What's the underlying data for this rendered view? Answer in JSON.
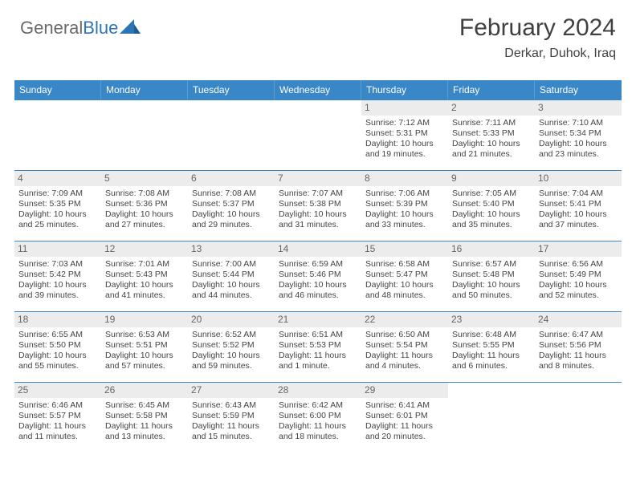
{
  "brand": {
    "part1": "General",
    "part2": "Blue"
  },
  "header": {
    "title": "February 2024",
    "location": "Derkar, Duhok, Iraq"
  },
  "colors": {
    "headerBar": "#3a87c8",
    "headerText": "#ffffff",
    "dayNumBg": "#ececec",
    "border": "#3a87c8",
    "logoGray": "#6a6a6a",
    "logoBlue": "#2e75b6"
  },
  "dayNames": [
    "Sunday",
    "Monday",
    "Tuesday",
    "Wednesday",
    "Thursday",
    "Friday",
    "Saturday"
  ],
  "layout": {
    "columns": 7,
    "rows": 5,
    "leadingBlanks": 4
  },
  "labels": {
    "sunrise": "Sunrise:",
    "sunset": "Sunset:",
    "daylight": "Daylight:"
  },
  "days": [
    {
      "n": 1,
      "sr": "7:12 AM",
      "ss": "5:31 PM",
      "dl": "10 hours and 19 minutes."
    },
    {
      "n": 2,
      "sr": "7:11 AM",
      "ss": "5:33 PM",
      "dl": "10 hours and 21 minutes."
    },
    {
      "n": 3,
      "sr": "7:10 AM",
      "ss": "5:34 PM",
      "dl": "10 hours and 23 minutes."
    },
    {
      "n": 4,
      "sr": "7:09 AM",
      "ss": "5:35 PM",
      "dl": "10 hours and 25 minutes."
    },
    {
      "n": 5,
      "sr": "7:08 AM",
      "ss": "5:36 PM",
      "dl": "10 hours and 27 minutes."
    },
    {
      "n": 6,
      "sr": "7:08 AM",
      "ss": "5:37 PM",
      "dl": "10 hours and 29 minutes."
    },
    {
      "n": 7,
      "sr": "7:07 AM",
      "ss": "5:38 PM",
      "dl": "10 hours and 31 minutes."
    },
    {
      "n": 8,
      "sr": "7:06 AM",
      "ss": "5:39 PM",
      "dl": "10 hours and 33 minutes."
    },
    {
      "n": 9,
      "sr": "7:05 AM",
      "ss": "5:40 PM",
      "dl": "10 hours and 35 minutes."
    },
    {
      "n": 10,
      "sr": "7:04 AM",
      "ss": "5:41 PM",
      "dl": "10 hours and 37 minutes."
    },
    {
      "n": 11,
      "sr": "7:03 AM",
      "ss": "5:42 PM",
      "dl": "10 hours and 39 minutes."
    },
    {
      "n": 12,
      "sr": "7:01 AM",
      "ss": "5:43 PM",
      "dl": "10 hours and 41 minutes."
    },
    {
      "n": 13,
      "sr": "7:00 AM",
      "ss": "5:44 PM",
      "dl": "10 hours and 44 minutes."
    },
    {
      "n": 14,
      "sr": "6:59 AM",
      "ss": "5:46 PM",
      "dl": "10 hours and 46 minutes."
    },
    {
      "n": 15,
      "sr": "6:58 AM",
      "ss": "5:47 PM",
      "dl": "10 hours and 48 minutes."
    },
    {
      "n": 16,
      "sr": "6:57 AM",
      "ss": "5:48 PM",
      "dl": "10 hours and 50 minutes."
    },
    {
      "n": 17,
      "sr": "6:56 AM",
      "ss": "5:49 PM",
      "dl": "10 hours and 52 minutes."
    },
    {
      "n": 18,
      "sr": "6:55 AM",
      "ss": "5:50 PM",
      "dl": "10 hours and 55 minutes."
    },
    {
      "n": 19,
      "sr": "6:53 AM",
      "ss": "5:51 PM",
      "dl": "10 hours and 57 minutes."
    },
    {
      "n": 20,
      "sr": "6:52 AM",
      "ss": "5:52 PM",
      "dl": "10 hours and 59 minutes."
    },
    {
      "n": 21,
      "sr": "6:51 AM",
      "ss": "5:53 PM",
      "dl": "11 hours and 1 minute."
    },
    {
      "n": 22,
      "sr": "6:50 AM",
      "ss": "5:54 PM",
      "dl": "11 hours and 4 minutes."
    },
    {
      "n": 23,
      "sr": "6:48 AM",
      "ss": "5:55 PM",
      "dl": "11 hours and 6 minutes."
    },
    {
      "n": 24,
      "sr": "6:47 AM",
      "ss": "5:56 PM",
      "dl": "11 hours and 8 minutes."
    },
    {
      "n": 25,
      "sr": "6:46 AM",
      "ss": "5:57 PM",
      "dl": "11 hours and 11 minutes."
    },
    {
      "n": 26,
      "sr": "6:45 AM",
      "ss": "5:58 PM",
      "dl": "11 hours and 13 minutes."
    },
    {
      "n": 27,
      "sr": "6:43 AM",
      "ss": "5:59 PM",
      "dl": "11 hours and 15 minutes."
    },
    {
      "n": 28,
      "sr": "6:42 AM",
      "ss": "6:00 PM",
      "dl": "11 hours and 18 minutes."
    },
    {
      "n": 29,
      "sr": "6:41 AM",
      "ss": "6:01 PM",
      "dl": "11 hours and 20 minutes."
    }
  ]
}
